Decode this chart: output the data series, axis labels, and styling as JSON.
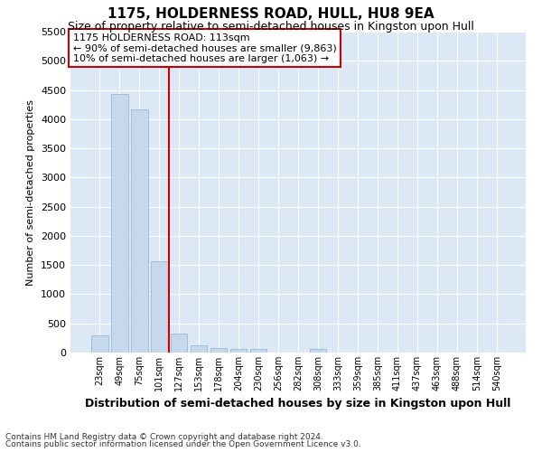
{
  "title": "1175, HOLDERNESS ROAD, HULL, HU8 9EA",
  "subtitle": "Size of property relative to semi-detached houses in Kingston upon Hull",
  "xlabel": "Distribution of semi-detached houses by size in Kingston upon Hull",
  "ylabel": "Number of semi-detached properties",
  "footnote1": "Contains HM Land Registry data © Crown copyright and database right 2024.",
  "footnote2": "Contains public sector information licensed under the Open Government Licence v3.0.",
  "annotation_title": "1175 HOLDERNESS ROAD: 113sqm",
  "annotation_line1": "← 90% of semi-detached houses are smaller (9,863)",
  "annotation_line2": "10% of semi-detached houses are larger (1,063) →",
  "bar_color": "#c5d8ec",
  "bar_edge_color": "#8ab0d4",
  "vline_color": "#cc0000",
  "vline_x_index": 3.5,
  "categories": [
    "23sqm",
    "49sqm",
    "75sqm",
    "101sqm",
    "127sqm",
    "153sqm",
    "178sqm",
    "204sqm",
    "230sqm",
    "256sqm",
    "282sqm",
    "308sqm",
    "333sqm",
    "359sqm",
    "385sqm",
    "411sqm",
    "437sqm",
    "463sqm",
    "488sqm",
    "514sqm",
    "540sqm"
  ],
  "values": [
    290,
    4430,
    4160,
    1570,
    325,
    125,
    70,
    55,
    55,
    0,
    0,
    65,
    0,
    0,
    0,
    0,
    0,
    0,
    0,
    0,
    0
  ],
  "ylim": [
    0,
    5500
  ],
  "yticks": [
    0,
    500,
    1000,
    1500,
    2000,
    2500,
    3000,
    3500,
    4000,
    4500,
    5000,
    5500
  ],
  "background_color": "#ffffff",
  "plot_bg_color": "#dce8f5",
  "grid_color": "#ffffff",
  "title_fontsize": 11,
  "subtitle_fontsize": 9,
  "xlabel_fontsize": 9,
  "ylabel_fontsize": 8,
  "annotation_box_facecolor": "#ffffff",
  "annotation_box_edgecolor": "#cc0000",
  "annotation_fontsize": 8
}
